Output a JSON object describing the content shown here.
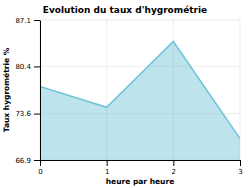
{
  "chart_data": {
    "type": "area",
    "title": "Evolution du taux d'hygrométrie",
    "xlabel": "heure par heure",
    "ylabel": "Taux hygrométrie %",
    "x": [
      0,
      1,
      2,
      3
    ],
    "values": [
      77.5,
      74.5,
      84.0,
      70.0
    ],
    "xlim": [
      0,
      3
    ],
    "ylim": [
      66.9,
      87.1
    ],
    "xticks": [
      0,
      1,
      2,
      3
    ],
    "yticks": [
      66.9,
      73.6,
      80.4,
      87.1
    ],
    "color": "#6cc4d8",
    "grid": true
  }
}
